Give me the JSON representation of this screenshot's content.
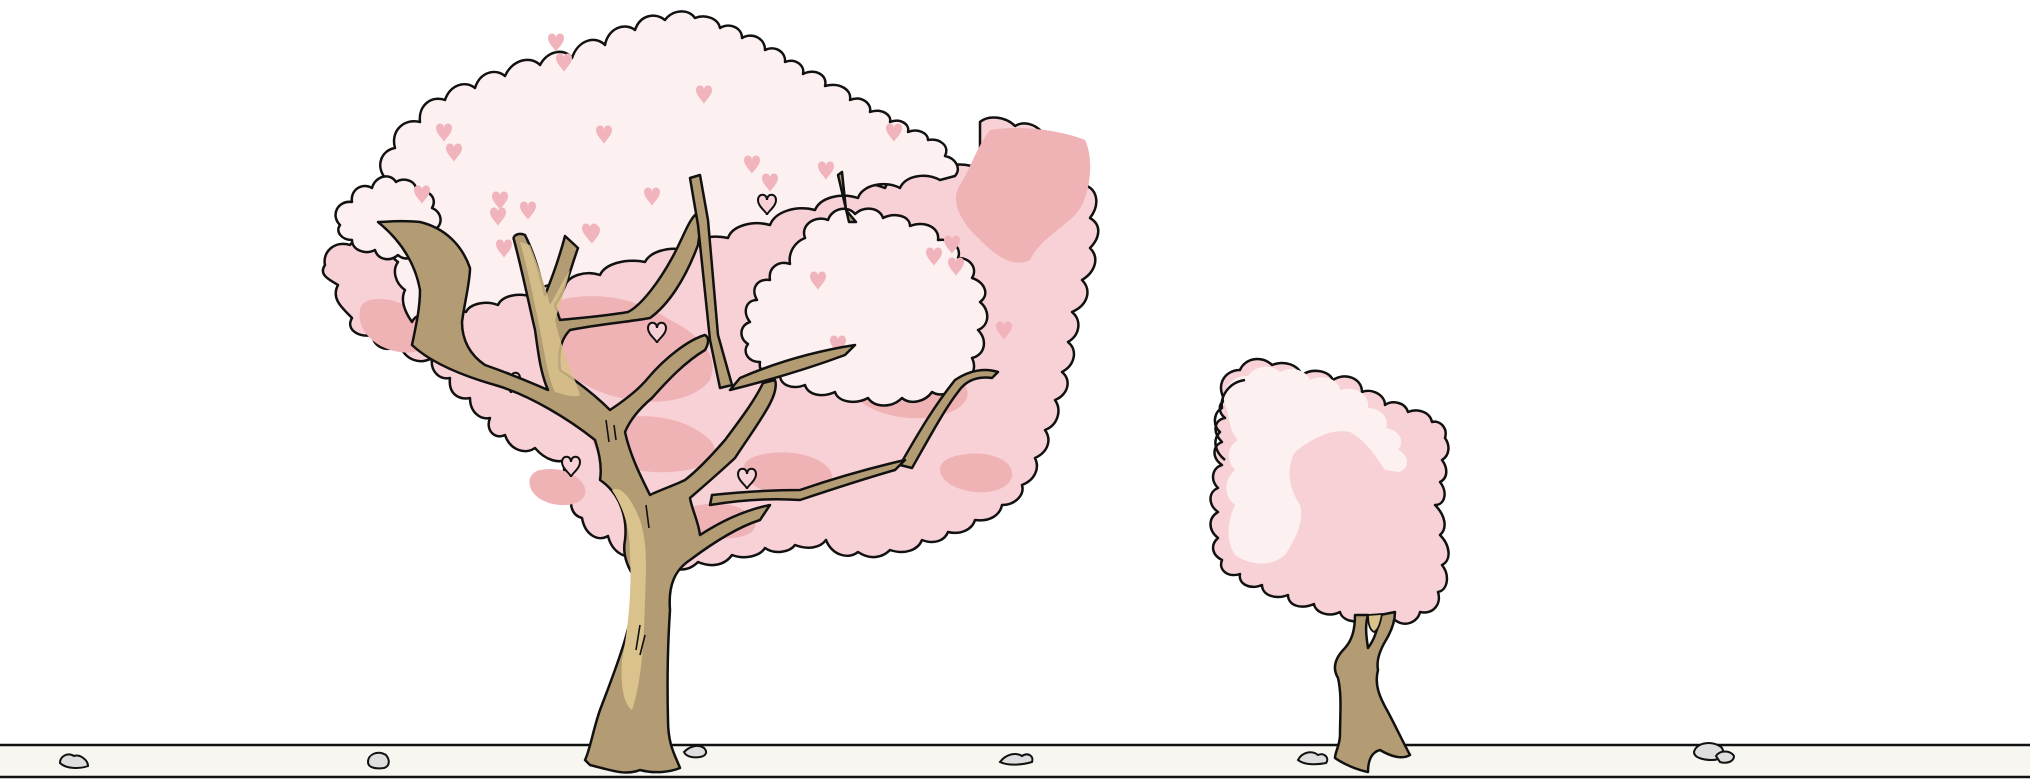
{
  "scene": {
    "description_colors": {
      "background": "#ffffff",
      "ground_fill": "#f7f6f1",
      "outline": "#111111",
      "blossom_light": "#fcf0f0",
      "blossom_mid": "#f7d1d5",
      "blossom_dark": "#efb3b6",
      "heart_pink": "#f1b4bd",
      "trunk": "#b39c73",
      "trunk_highlight": "#d9c28c",
      "pebble": "#dedede"
    },
    "trees": [
      {
        "name": "large-cherry-tree",
        "icon": "cherry-blossom-tree"
      },
      {
        "name": "small-cherry-tree",
        "icon": "cherry-blossom-tree"
      }
    ],
    "pebble_count_shown": 8
  }
}
